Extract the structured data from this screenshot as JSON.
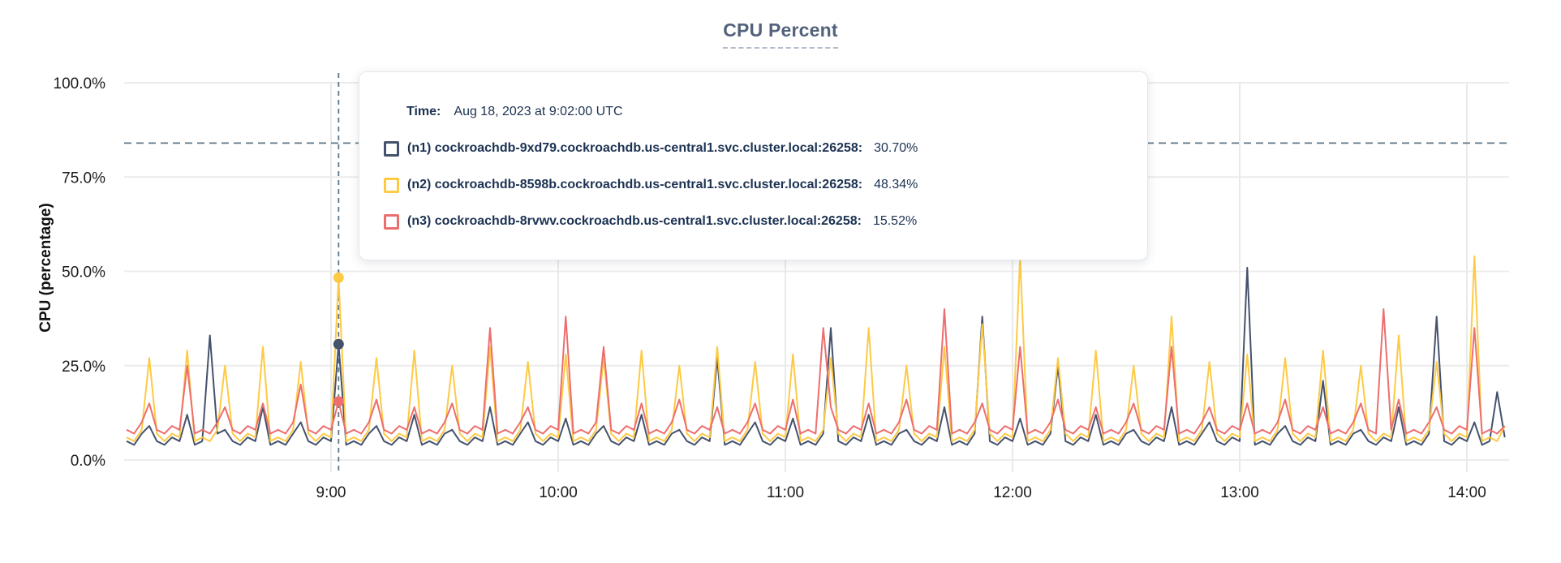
{
  "title": "CPU Percent",
  "tooltip": {
    "time_label": "Time:",
    "time_value": "Aug 18, 2023 at 9:02:00 UTC",
    "rows": [
      {
        "label": "(n1) cockroachdb-9xd79.cockroachdb.us-central1.svc.cluster.local:26258:",
        "value": "30.70%",
        "color": "#45526c"
      },
      {
        "label": "(n2) cockroachdb-8598b.cockroachdb.us-central1.svc.cluster.local:26258:",
        "value": "48.34%",
        "color": "#fdca44"
      },
      {
        "label": "(n3) cockroachdb-8rvwv.cockroachdb.us-central1.svc.cluster.local:26258:",
        "value": "15.52%",
        "color": "#ed6e6e"
      }
    ]
  },
  "chart_data": {
    "type": "line",
    "title": "CPU Percent",
    "xlabel": "",
    "ylabel": "CPU (percentage)",
    "ylim": [
      0,
      100
    ],
    "grid": true,
    "legend_position": "tooltip-overlay",
    "yticks": [
      {
        "value": 0,
        "label": "0.0%"
      },
      {
        "value": 25,
        "label": "25.0%"
      },
      {
        "value": 50,
        "label": "50.0%"
      },
      {
        "value": 75,
        "label": "75.0%"
      },
      {
        "value": 100,
        "label": "100.0%"
      }
    ],
    "xticks": [
      {
        "hour": 9,
        "label": "9:00"
      },
      {
        "hour": 10,
        "label": "10:00"
      },
      {
        "hour": 11,
        "label": "11:00"
      },
      {
        "hour": 12,
        "label": "12:00"
      },
      {
        "hour": 13,
        "label": "13:00"
      },
      {
        "hour": 14,
        "label": "14:00"
      }
    ],
    "x_start_hour": 8.1,
    "x_step_minutes": 2,
    "hover": {
      "x_hour": 9.0333,
      "rule_y_percent": 84,
      "values": [
        30.7,
        48.34,
        15.52
      ]
    },
    "series": [
      {
        "name": "(n1) cockroachdb-9xd79.cockroachdb.us-central1.svc.cluster.local:26258",
        "color": "#45526c",
        "values": [
          5,
          4,
          7,
          9,
          5,
          4,
          6,
          5,
          12,
          4,
          5,
          33,
          7,
          8,
          5,
          4,
          6,
          5,
          14,
          4,
          5,
          4,
          7,
          10,
          5,
          4,
          6,
          5,
          30.7,
          4,
          5,
          4,
          7,
          9,
          5,
          4,
          6,
          5,
          12,
          4,
          5,
          4,
          7,
          8,
          5,
          4,
          6,
          5,
          14,
          4,
          5,
          4,
          7,
          10,
          5,
          4,
          6,
          5,
          11,
          4,
          5,
          4,
          7,
          9,
          5,
          4,
          6,
          5,
          12,
          4,
          5,
          4,
          7,
          8,
          5,
          4,
          6,
          5,
          27,
          4,
          5,
          4,
          7,
          10,
          5,
          4,
          6,
          5,
          11,
          4,
          5,
          4,
          7,
          35,
          5,
          4,
          6,
          5,
          12,
          4,
          5,
          4,
          7,
          8,
          5,
          4,
          6,
          5,
          14,
          4,
          5,
          4,
          7,
          38,
          5,
          4,
          6,
          5,
          11,
          4,
          5,
          4,
          7,
          25,
          5,
          4,
          6,
          5,
          12,
          4,
          5,
          4,
          7,
          8,
          5,
          4,
          6,
          5,
          14,
          4,
          5,
          4,
          7,
          10,
          5,
          4,
          6,
          5,
          51,
          4,
          5,
          4,
          7,
          9,
          5,
          4,
          6,
          5,
          21,
          4,
          5,
          4,
          7,
          8,
          5,
          4,
          6,
          5,
          14,
          4,
          5,
          4,
          7,
          38,
          5,
          4,
          6,
          5,
          10,
          4,
          5,
          18,
          6
        ]
      },
      {
        "name": "(n2) cockroachdb-8598b.cockroachdb.us-central1.svc.cluster.local:26258",
        "color": "#fdca44",
        "values": [
          6,
          5,
          8,
          27,
          7,
          5,
          7,
          6,
          29,
          5,
          6,
          5,
          8,
          25,
          7,
          5,
          7,
          6,
          30,
          5,
          6,
          5,
          8,
          26,
          7,
          5,
          7,
          6,
          48.3,
          5,
          6,
          5,
          8,
          27,
          7,
          5,
          7,
          6,
          29,
          5,
          6,
          5,
          8,
          25,
          7,
          5,
          7,
          6,
          30,
          5,
          6,
          5,
          8,
          26,
          7,
          5,
          7,
          6,
          28,
          5,
          6,
          5,
          8,
          27,
          7,
          5,
          7,
          6,
          29,
          5,
          6,
          5,
          8,
          25,
          7,
          5,
          7,
          6,
          30,
          5,
          6,
          5,
          8,
          26,
          7,
          5,
          7,
          6,
          28,
          5,
          6,
          5,
          8,
          27,
          7,
          5,
          7,
          6,
          35,
          5,
          6,
          5,
          8,
          25,
          7,
          5,
          7,
          6,
          30,
          5,
          6,
          5,
          8,
          36,
          7,
          5,
          7,
          6,
          54,
          5,
          6,
          5,
          8,
          27,
          7,
          5,
          7,
          6,
          29,
          5,
          6,
          5,
          8,
          25,
          7,
          5,
          7,
          6,
          38,
          5,
          6,
          5,
          8,
          26,
          7,
          5,
          7,
          6,
          28,
          5,
          6,
          5,
          8,
          27,
          7,
          5,
          7,
          6,
          29,
          5,
          6,
          5,
          8,
          25,
          7,
          5,
          7,
          6,
          33,
          5,
          6,
          5,
          8,
          26,
          7,
          5,
          7,
          6,
          54,
          5,
          6,
          5,
          9
        ]
      },
      {
        "name": "(n3) cockroachdb-8rvwv.cockroachdb.us-central1.svc.cluster.local:26258",
        "color": "#ed6e6e",
        "values": [
          8,
          7,
          10,
          15,
          8,
          7,
          9,
          8,
          25,
          7,
          8,
          7,
          10,
          14,
          8,
          7,
          9,
          8,
          15,
          7,
          8,
          7,
          10,
          20,
          8,
          7,
          9,
          8,
          15.5,
          7,
          8,
          7,
          10,
          16,
          8,
          7,
          9,
          8,
          14,
          7,
          8,
          7,
          10,
          15,
          8,
          7,
          9,
          8,
          35,
          7,
          8,
          7,
          10,
          14,
          8,
          7,
          9,
          8,
          38,
          7,
          8,
          7,
          10,
          30,
          8,
          7,
          9,
          8,
          15,
          7,
          8,
          7,
          10,
          16,
          8,
          7,
          9,
          8,
          14,
          7,
          8,
          7,
          10,
          15,
          8,
          7,
          9,
          8,
          16,
          7,
          8,
          7,
          35,
          14,
          8,
          7,
          9,
          8,
          15,
          7,
          8,
          7,
          10,
          16,
          8,
          7,
          9,
          8,
          40,
          7,
          8,
          7,
          10,
          15,
          8,
          7,
          9,
          8,
          30,
          7,
          8,
          7,
          10,
          16,
          8,
          7,
          9,
          8,
          14,
          7,
          8,
          7,
          10,
          15,
          8,
          7,
          9,
          8,
          30,
          7,
          8,
          7,
          10,
          14,
          8,
          7,
          9,
          8,
          15,
          7,
          8,
          7,
          10,
          16,
          8,
          7,
          9,
          8,
          14,
          7,
          8,
          7,
          10,
          15,
          8,
          7,
          40,
          8,
          16,
          7,
          8,
          7,
          10,
          14,
          8,
          7,
          9,
          8,
          35,
          7,
          8,
          7,
          9
        ]
      }
    ]
  }
}
